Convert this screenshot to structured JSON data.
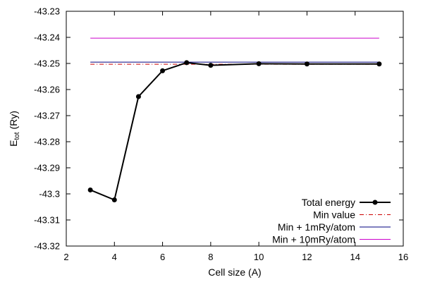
{
  "chart_data": {
    "type": "line",
    "xlabel": "Cell size (A)",
    "ylabel_main": "E",
    "ylabel_sub": "tot",
    "ylabel_unit": " (Ry)",
    "xlim": [
      2,
      16
    ],
    "ylim": [
      -43.32,
      -43.23
    ],
    "x_ticks": [
      2,
      4,
      6,
      8,
      10,
      12,
      14,
      16
    ],
    "x_tick_labels": [
      "2",
      "4",
      "6",
      "8",
      "10",
      "12",
      "14",
      "16"
    ],
    "y_ticks": [
      -43.32,
      -43.31,
      -43.3,
      -43.29,
      -43.28,
      -43.27,
      -43.26,
      -43.25,
      -43.24,
      -43.23
    ],
    "y_tick_labels": [
      "-43.32",
      "-43.31",
      "-43.3",
      "-43.29",
      "-43.28",
      "-43.27",
      "-43.26",
      "-43.25",
      "-43.24",
      "-43.23"
    ],
    "grid": false,
    "legend_position": "bottom-right",
    "series": [
      {
        "name": "Total energy",
        "style": "line-points",
        "color": "#000000",
        "x": [
          3,
          4,
          5,
          6,
          7,
          8,
          10,
          12,
          15
        ],
        "y": [
          -43.2985,
          -43.3023,
          -43.2627,
          -43.2528,
          -43.2497,
          -43.2507,
          -43.2501,
          -43.2502,
          -43.2502
        ]
      },
      {
        "name": "Min value",
        "style": "dash-dot",
        "color": "#cc0000",
        "x": [
          3,
          15
        ],
        "y": [
          -43.2503,
          -43.2503
        ]
      },
      {
        "name": "Min + 1mRy/atom",
        "style": "solid",
        "color": "#00007f",
        "x": [
          3,
          15
        ],
        "y": [
          -43.2495,
          -43.2495
        ]
      },
      {
        "name": "Min + 10mRy/atom",
        "style": "solid",
        "color": "#cc00cc",
        "x": [
          3,
          15
        ],
        "y": [
          -43.2403,
          -43.2403
        ]
      }
    ]
  }
}
